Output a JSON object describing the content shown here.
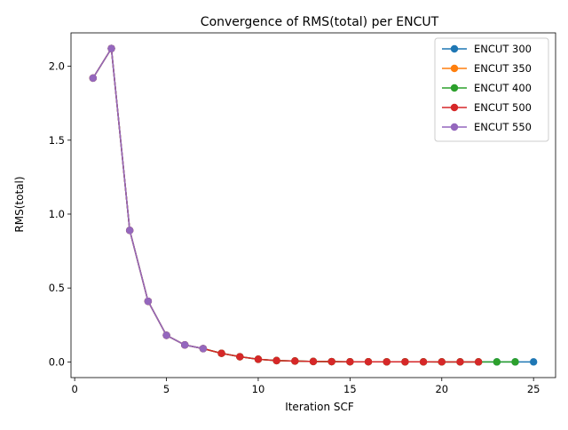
{
  "chart_data": {
    "type": "line",
    "title": "Convergence of RMS(total) per ENCUT",
    "xlabel": "Iteration SCF",
    "ylabel": "RMS(total)",
    "xlim": [
      -0.2,
      26.2
    ],
    "ylim": [
      -0.106,
      2.226
    ],
    "xticks": [
      0,
      5,
      10,
      15,
      20,
      25
    ],
    "xtick_labels": [
      "0",
      "5",
      "10",
      "15",
      "20",
      "25"
    ],
    "yticks": [
      0.0,
      0.5,
      1.0,
      1.5,
      2.0
    ],
    "ytick_labels": [
      "0.0",
      "0.5",
      "1.0",
      "1.5",
      "2.0"
    ],
    "grid": false,
    "legend_position": "top-right",
    "marker": "circle",
    "series": [
      {
        "name": "ENCUT 300",
        "color": "#1f77b4",
        "x": [
          1,
          2,
          3,
          4,
          5,
          6,
          7,
          8,
          9,
          10,
          11,
          12,
          13,
          14,
          15,
          16,
          17,
          18,
          19,
          20,
          21,
          22,
          23,
          24,
          25
        ],
        "y": [
          1.92,
          2.12,
          0.89,
          0.41,
          0.18,
          0.115,
          0.09,
          0.058,
          0.035,
          0.018,
          0.009,
          0.006,
          0.003,
          0.002,
          0.001,
          0.001,
          0.0005,
          0.0005,
          0.0003,
          0.0002,
          0.0002,
          0.0001,
          0.0001,
          0.0001,
          0.0001
        ]
      },
      {
        "name": "ENCUT 350",
        "color": "#ff7f0e",
        "x": [
          1,
          2,
          3,
          4,
          5,
          6,
          7,
          8,
          9,
          10,
          11,
          12,
          13,
          14,
          15,
          16,
          17,
          18,
          19,
          20,
          21,
          22
        ],
        "y": [
          1.92,
          2.12,
          0.89,
          0.41,
          0.18,
          0.115,
          0.09,
          0.058,
          0.035,
          0.018,
          0.009,
          0.006,
          0.003,
          0.002,
          0.001,
          0.001,
          0.0005,
          0.0005,
          0.0003,
          0.0002,
          0.0002,
          0.0001
        ]
      },
      {
        "name": "ENCUT 400",
        "color": "#2ca02c",
        "x": [
          1,
          2,
          3,
          4,
          5,
          6,
          7,
          8,
          9,
          10,
          11,
          12,
          13,
          14,
          15,
          16,
          17,
          18,
          19,
          20,
          21,
          22,
          23,
          24
        ],
        "y": [
          1.92,
          2.12,
          0.89,
          0.41,
          0.18,
          0.115,
          0.09,
          0.058,
          0.035,
          0.018,
          0.009,
          0.006,
          0.003,
          0.002,
          0.001,
          0.001,
          0.0005,
          0.0005,
          0.0003,
          0.0002,
          0.0002,
          0.0001,
          0.0001,
          0.0001
        ]
      },
      {
        "name": "ENCUT 500",
        "color": "#d62728",
        "x": [
          1,
          2,
          3,
          4,
          5,
          6,
          7,
          8,
          9,
          10,
          11,
          12,
          13,
          14,
          15,
          16,
          17,
          18,
          19,
          20,
          21,
          22
        ],
        "y": [
          1.92,
          2.12,
          0.89,
          0.41,
          0.18,
          0.115,
          0.09,
          0.058,
          0.035,
          0.018,
          0.009,
          0.006,
          0.003,
          0.002,
          0.001,
          0.001,
          0.0005,
          0.0005,
          0.0003,
          0.0002,
          0.0002,
          0.0001
        ]
      },
      {
        "name": "ENCUT 550",
        "color": "#9467bd",
        "x": [
          1,
          2,
          3,
          4,
          5,
          6,
          7
        ],
        "y": [
          1.92,
          2.12,
          0.89,
          0.41,
          0.18,
          0.115,
          0.09
        ]
      }
    ]
  }
}
